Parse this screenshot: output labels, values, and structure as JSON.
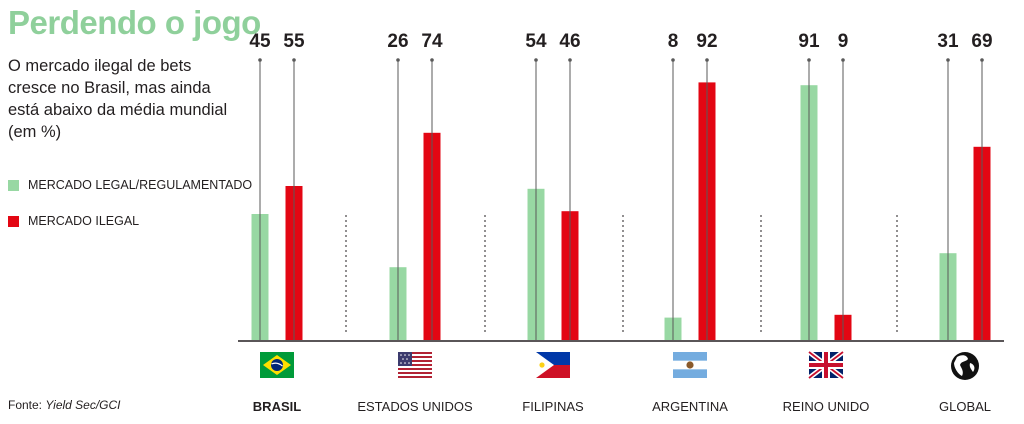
{
  "title": "Perdendo o jogo",
  "subtitle": "O mercado ilegal de bets cresce no Brasil, mas ainda está abaixo da média mundial (em %)",
  "legend": {
    "legal": "MERCADO LEGAL/REGULAMENTADO",
    "illegal": "MERCADO ILEGAL"
  },
  "source": {
    "prefix": "Fonte: ",
    "name": "Yield Sec/GCI"
  },
  "colors": {
    "legal": "#98d8a3",
    "illegal": "#e30613",
    "title": "#8fd09b"
  },
  "chart_data": {
    "type": "bar",
    "ylim": [
      0,
      100
    ],
    "categories": [
      "BRASIL",
      "ESTADOS UNIDOS",
      "FILIPINAS",
      "ARGENTINA",
      "REINO UNIDO",
      "GLOBAL"
    ],
    "category_icons": [
      "brazil-flag-icon",
      "usa-flag-icon",
      "philippines-flag-icon",
      "argentina-flag-icon",
      "uk-flag-icon",
      "globe-icon"
    ],
    "highlighted_category": "BRASIL",
    "series": [
      {
        "name": "MERCADO LEGAL/REGULAMENTADO",
        "values": [
          45,
          26,
          54,
          8,
          91,
          31
        ]
      },
      {
        "name": "MERCADO ILEGAL",
        "values": [
          55,
          74,
          46,
          92,
          9,
          69
        ]
      }
    ]
  }
}
